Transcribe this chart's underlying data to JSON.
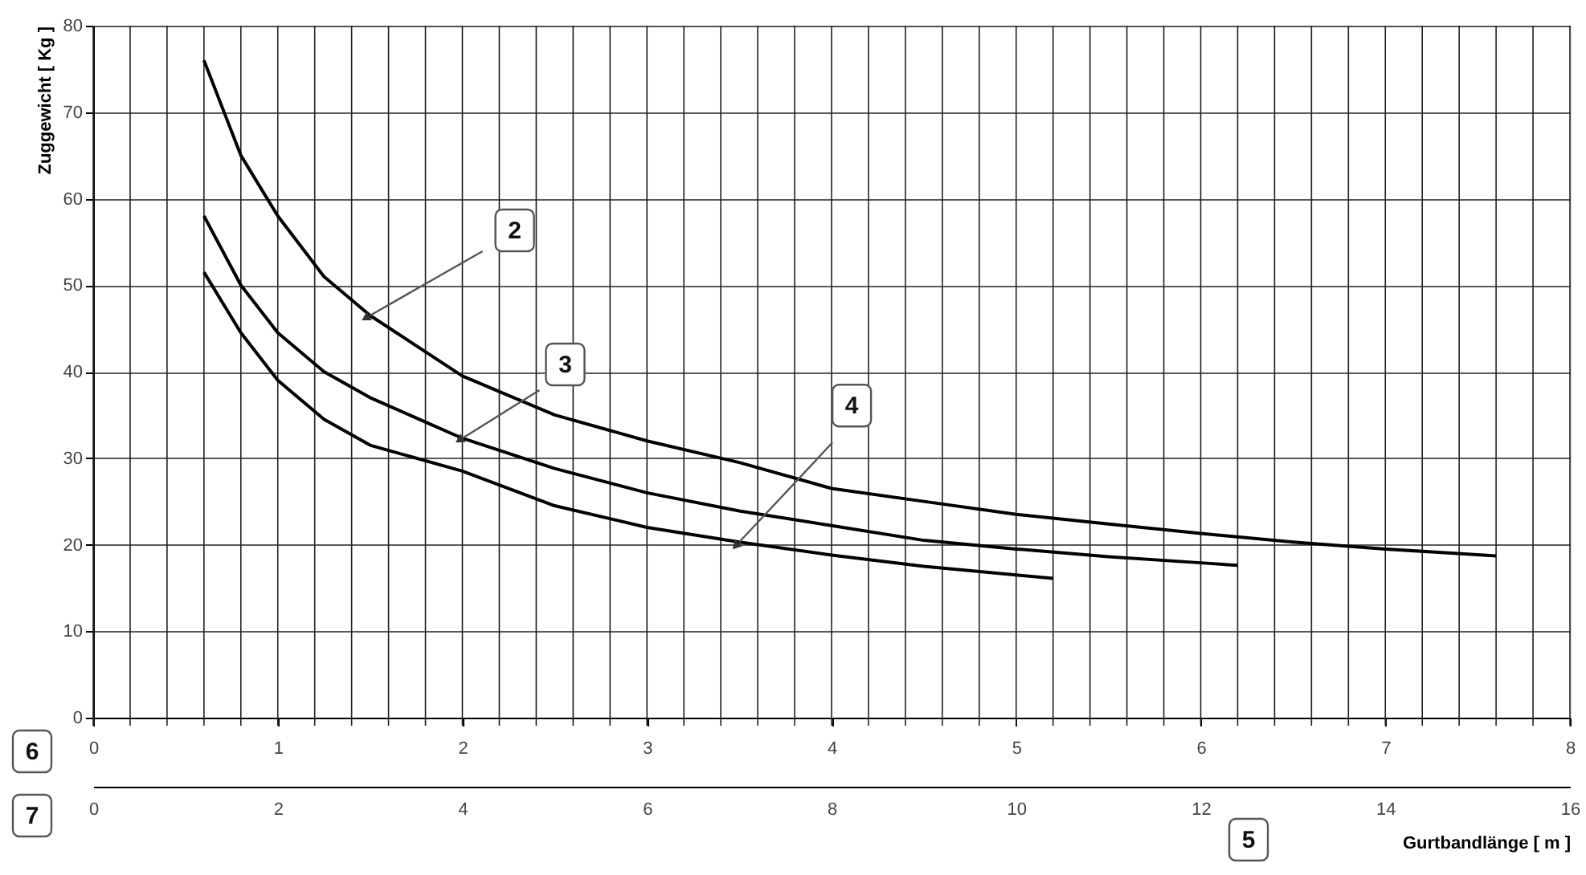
{
  "chart_data": {
    "type": "line",
    "ylabel": "Zuggewicht [ Kg ]",
    "xlabel": "Gurtbandlänge [ m ]",
    "xlim": [
      0,
      8
    ],
    "xticks": [
      0,
      {
        "value": 0.2,
        "label": null
      },
      {
        "value": 0.4,
        "label": null
      },
      {
        "value": 0.6,
        "label": null
      },
      {
        "value": 0.8,
        "label": null
      },
      1,
      {
        "value": 1.2,
        "label": null
      },
      {
        "value": 1.4,
        "label": null
      },
      {
        "value": 1.6,
        "label": null
      },
      {
        "value": 1.8,
        "label": null
      },
      2,
      {
        "value": 2.2,
        "label": null
      },
      {
        "value": 2.4,
        "label": null
      },
      {
        "value": 2.6,
        "label": null
      },
      {
        "value": 2.8,
        "label": null
      },
      3,
      {
        "value": 3.2,
        "label": null
      },
      {
        "value": 3.4,
        "label": null
      },
      {
        "value": 3.6,
        "label": null
      },
      {
        "value": 3.8,
        "label": null
      },
      4,
      {
        "value": 4.2,
        "label": null
      },
      {
        "value": 4.4,
        "label": null
      },
      {
        "value": 4.6,
        "label": null
      },
      {
        "value": 4.8,
        "label": null
      },
      5,
      {
        "value": 5.2,
        "label": null
      },
      {
        "value": 5.4,
        "label": null
      },
      {
        "value": 5.6,
        "label": null
      },
      {
        "value": 5.8,
        "label": null
      },
      6,
      {
        "value": 6.2,
        "label": null
      },
      {
        "value": 6.4,
        "label": null
      },
      {
        "value": 6.6,
        "label": null
      },
      {
        "value": 6.8,
        "label": null
      },
      7,
      {
        "value": 7.2,
        "label": null
      },
      {
        "value": 7.4,
        "label": null
      },
      {
        "value": 7.6,
        "label": null
      },
      {
        "value": 7.8,
        "label": null
      },
      8
    ],
    "x2lim": [
      0,
      16
    ],
    "x2ticks": [
      0,
      2,
      4,
      6,
      8,
      10,
      12,
      14,
      16
    ],
    "ylim": [
      0,
      80
    ],
    "yticks": [
      0,
      10,
      20,
      30,
      40,
      50,
      60,
      70,
      80
    ],
    "grid": true,
    "marker": "none",
    "line_style": "solid",
    "series": [
      {
        "name": "2",
        "color": "#000000",
        "x": [
          0.6,
          0.8,
          1,
          1.25,
          1.5,
          2,
          2.5,
          3,
          3.5,
          4,
          4.5,
          5,
          5.5,
          6,
          6.5,
          7,
          7.6
        ],
        "values": [
          76,
          65,
          58,
          51,
          46.5,
          39.5,
          35,
          32,
          29.5,
          26.5,
          25,
          23.5,
          22.4,
          21.3,
          20.3,
          19.5,
          18.7
        ]
      },
      {
        "name": "3",
        "color": "#000000",
        "x": [
          0.6,
          0.8,
          1,
          1.25,
          1.5,
          2,
          2.5,
          3,
          3.5,
          4,
          4.5,
          5,
          5.5,
          6,
          6.2
        ],
        "values": [
          58,
          50,
          44.5,
          40,
          37,
          32.3,
          28.8,
          26,
          23.9,
          22.2,
          20.5,
          19.5,
          18.6,
          17.9,
          17.6
        ]
      },
      {
        "name": "4",
        "color": "#000000",
        "x": [
          0.6,
          0.8,
          1,
          1.25,
          1.5,
          2,
          2.5,
          3,
          3.5,
          4,
          4.5,
          5,
          5.2
        ],
        "values": [
          51.5,
          44.5,
          39,
          34.5,
          31.5,
          28.5,
          24.5,
          22,
          20.3,
          18.8,
          17.5,
          16.5,
          16.1
        ]
      }
    ],
    "annotations": [
      "6",
      "7",
      "5"
    ]
  }
}
